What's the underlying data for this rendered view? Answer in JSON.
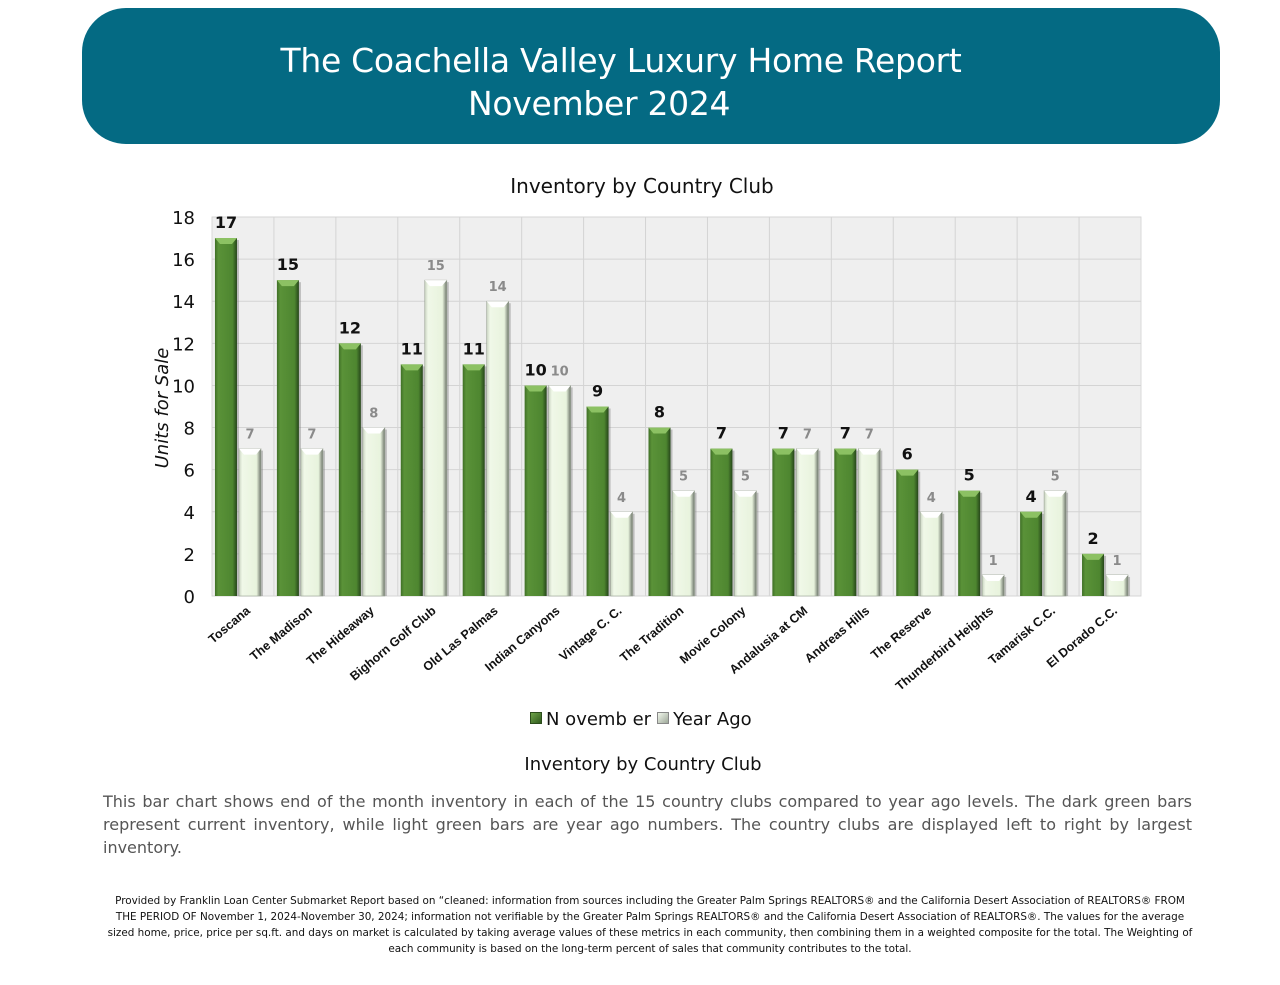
{
  "header": {
    "title": "The Coachella Valley Luxury Home Report",
    "subtitle": "November 2024",
    "banner_color": "#046a83"
  },
  "chart_title": "Inventory by Country Club",
  "caption": "Inventory by Country Club",
  "legend": {
    "current_label": "N ovemb er",
    "previous_label": "Year Ago"
  },
  "description": "This bar chart shows end of the month inventory in each of the 15 country clubs compared to year ago levels. The dark green bars represent current inventory, while light green bars are year ago numbers. The country clubs are displayed left to right by largest inventory.",
  "footnote": "Provided by Franklin Loan Center Submarket Report based on “cleaned: information from sources including the Greater Palm Springs REALTORS® and the California Desert Association of REALTORS® FROM THE PERIOD OF November 1, 2024-November 30, 2024; information not verifiable by the Greater Palm Springs REALTORS® and the California Desert Association of REALTORS®. The values for the average sized home, price, price per sq.ft. and days on market is calculated by taking average values of these metrics in each community, then combining them in a weighted composite for the total. The Weighting of each community is based on the long-term percent of sales that community contributes to the total.",
  "chart_data": {
    "type": "bar",
    "title": "Inventory by Country Club",
    "xlabel": "",
    "ylabel": "Units for Sale",
    "ylim": [
      0,
      18
    ],
    "yticks": [
      0,
      2,
      4,
      6,
      8,
      10,
      12,
      14,
      16,
      18
    ],
    "grid": true,
    "legend_position": "bottom",
    "categories": [
      "Toscana",
      "The Madison",
      "The Hideaway",
      "Bighorn Golf Club",
      "Old Las Palmas",
      "Indian Canyons",
      "Vintage C. C.",
      "The Tradition",
      "Movie Colony",
      "Andalusia at CM",
      "Andreas Hills",
      "The Reserve",
      "Thunderbird Heights",
      "Tamarisk C.C.",
      "El Dorado C.C."
    ],
    "series": [
      {
        "name": "N ovemb er",
        "color": "#4f8a32",
        "values": [
          17,
          15,
          12,
          11,
          11,
          10,
          9,
          8,
          7,
          7,
          7,
          6,
          5,
          4,
          2
        ]
      },
      {
        "name": "Year Ago",
        "color": "#eaf5e0",
        "values": [
          7,
          7,
          8,
          15,
          14,
          10,
          4,
          5,
          5,
          7,
          7,
          4,
          1,
          5,
          1
        ]
      }
    ]
  }
}
